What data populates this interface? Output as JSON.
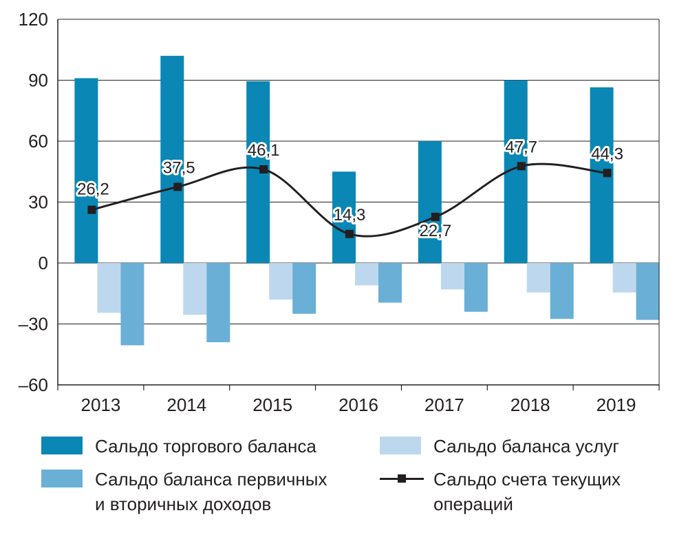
{
  "chart_data": {
    "type": "bar+line",
    "categories": [
      "2013",
      "2014",
      "2015",
      "2016",
      "2017",
      "2018",
      "2019"
    ],
    "series": [
      {
        "name": "Сальдо торгового баланса",
        "type": "bar",
        "color": "#0a87b5",
        "values": [
          91,
          102,
          89.5,
          45,
          60,
          90,
          86.5
        ]
      },
      {
        "name": "Сальдо баланса услуг",
        "type": "bar",
        "color": "#bdd8ee",
        "values": [
          -24.5,
          -25.5,
          -18,
          -11,
          -13,
          -14.5,
          -14.5
        ]
      },
      {
        "name": "Сальдо баланса первичных\nи вторичных доходов",
        "type": "bar",
        "color": "#6aafd6",
        "values": [
          -40.5,
          -39,
          -25,
          -19.5,
          -24,
          -27.5,
          -28
        ]
      },
      {
        "name": "Сальдо счета текущих\nопераций",
        "type": "line",
        "color": "#231f20",
        "values": [
          26.2,
          37.5,
          46.1,
          14.3,
          22.7,
          47.7,
          44.3
        ],
        "data_labels": [
          "26,2",
          "37,5",
          "46,1",
          "14,3",
          "22,7",
          "47,7",
          "44,3"
        ]
      }
    ],
    "y_ticks": [
      120,
      90,
      60,
      30,
      0,
      -30,
      -60
    ],
    "y_tick_labels": [
      "120",
      "90",
      "60",
      "30",
      "0",
      "–30",
      "–60"
    ],
    "ylim": [
      -60,
      120
    ],
    "grid": true,
    "legend_position": "bottom"
  }
}
